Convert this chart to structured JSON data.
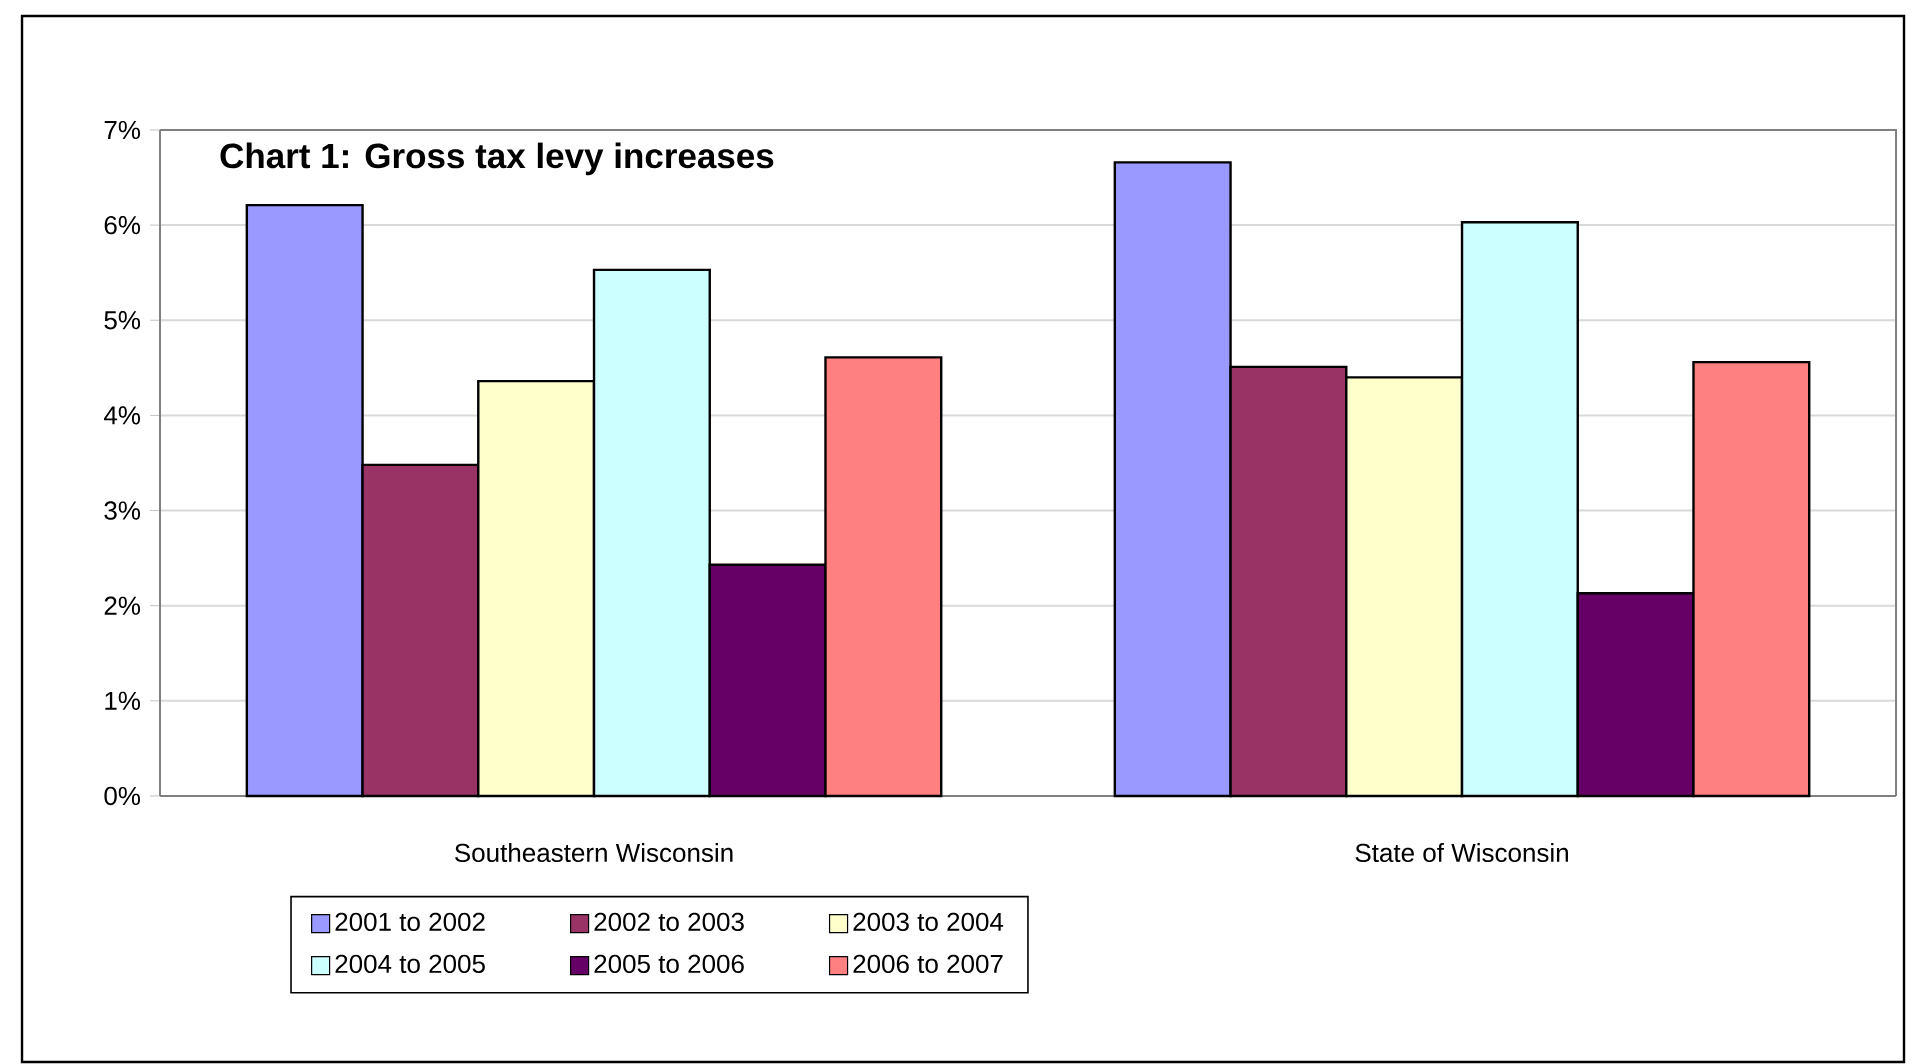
{
  "chart_data": {
    "type": "bar",
    "title": "Chart 1: Gross tax levy increases",
    "categories": [
      "Southeastern Wisconsin",
      "State of Wisconsin"
    ],
    "series": [
      {
        "name": "2001 to 2002",
        "color": "#9999ff",
        "values": [
          6.21,
          6.66
        ]
      },
      {
        "name": "2002 to 2003",
        "color": "#993366",
        "values": [
          3.48,
          4.51
        ]
      },
      {
        "name": "2003 to 2004",
        "color": "#ffffcc",
        "values": [
          4.36,
          4.4
        ]
      },
      {
        "name": "2004 to 2005",
        "color": "#ccffff",
        "values": [
          5.53,
          6.03
        ]
      },
      {
        "name": "2005 to 2006",
        "color": "#660066",
        "values": [
          2.43,
          2.13
        ]
      },
      {
        "name": "2006 to 2007",
        "color": "#ff8080",
        "values": [
          4.61,
          4.56
        ]
      }
    ],
    "ylim": [
      0,
      7
    ],
    "yticks": [
      {
        "value": 0,
        "label": "0%"
      },
      {
        "value": 1,
        "label": "1%"
      },
      {
        "value": 2,
        "label": "2%"
      },
      {
        "value": 3,
        "label": "3%"
      },
      {
        "value": 4,
        "label": "4%"
      },
      {
        "value": 5,
        "label": "5%"
      },
      {
        "value": 6,
        "label": "6%"
      },
      {
        "value": 7,
        "label": "7%"
      }
    ],
    "grid": "y",
    "legend": "bottom"
  }
}
